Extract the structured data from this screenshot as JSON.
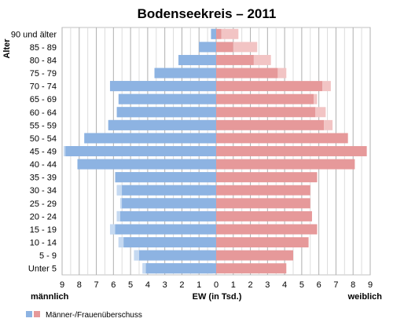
{
  "chart_data": {
    "type": "bar",
    "orientation": "horizontal-population-pyramid",
    "title": "Bodenseekreis – 2011",
    "ylabel": "Alter",
    "xlabel": "EW (in Tsd.)",
    "left_label": "männlich",
    "right_label": "weiblich",
    "xlim": [
      -9,
      9
    ],
    "x_ticks": [
      "9",
      "8",
      "7",
      "6",
      "5",
      "4",
      "3",
      "2",
      "1",
      "0",
      "1",
      "2",
      "3",
      "4",
      "5",
      "6",
      "7",
      "8",
      "9"
    ],
    "grid": true,
    "legend_text": "Männer-/Frauenüberschuss",
    "colors": {
      "male": "#8db3e2",
      "male_excess": "#c5d9f1",
      "female": "#e6999a",
      "female_excess": "#f2c4c4",
      "grid": "#c0c0c0"
    },
    "categories": [
      "90 und älter",
      "85 - 89",
      "80 - 84",
      "75 - 79",
      "70 - 74",
      "65 - 69",
      "60 - 64",
      "55 - 59",
      "50 - 54",
      "45 - 49",
      "40 - 44",
      "35 - 39",
      "30 - 34",
      "25 - 29",
      "20 - 24",
      "15 - 19",
      "10 - 14",
      "5 - 9",
      "Unter 5"
    ],
    "series": [
      {
        "name": "männlich",
        "values": [
          0.3,
          1.0,
          2.2,
          3.6,
          6.2,
          5.7,
          5.8,
          6.3,
          7.7,
          8.9,
          8.1,
          5.9,
          5.8,
          5.6,
          5.8,
          6.2,
          5.7,
          4.8,
          4.3
        ]
      },
      {
        "name": "weiblich",
        "values": [
          1.3,
          2.4,
          3.2,
          4.1,
          6.7,
          5.9,
          6.4,
          6.8,
          7.7,
          8.8,
          8.1,
          5.9,
          5.5,
          5.5,
          5.6,
          5.9,
          5.4,
          4.5,
          4.1
        ]
      }
    ]
  }
}
